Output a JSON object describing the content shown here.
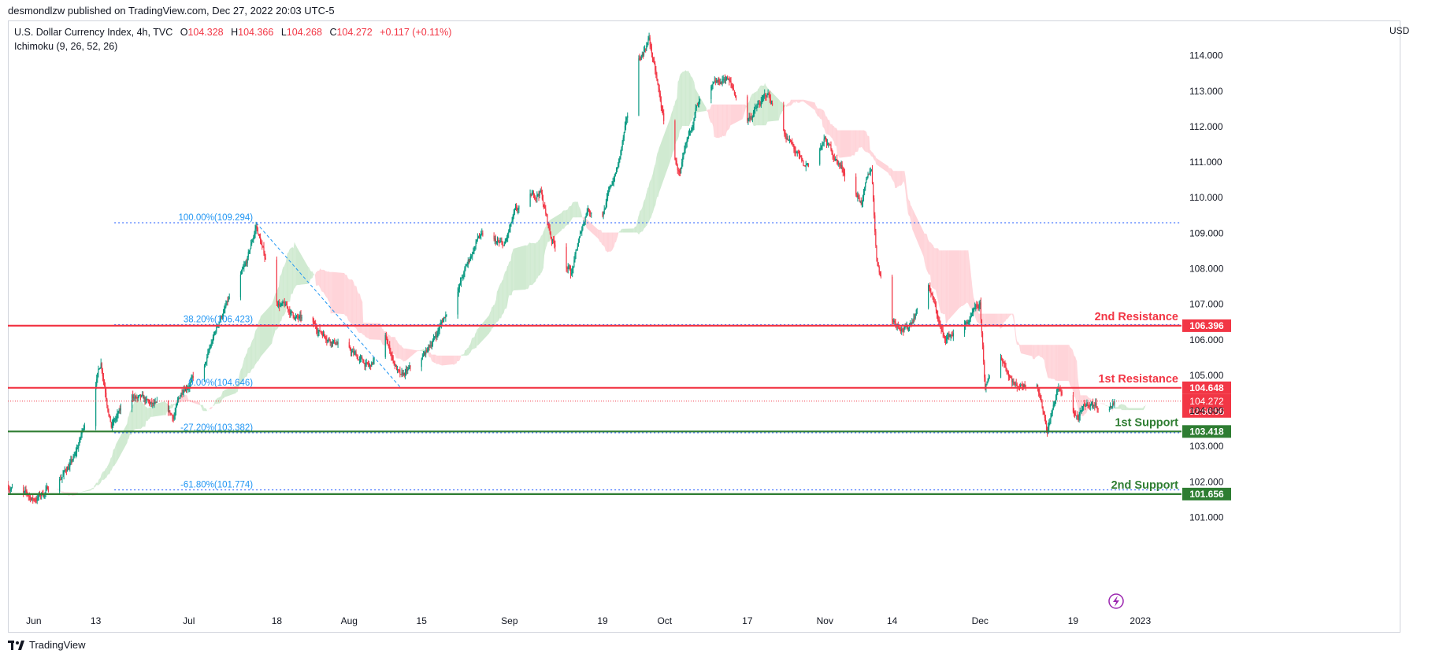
{
  "header": {
    "published": "desmondlzw published on TradingView.com, Dec 27, 2022 20:03 UTC-5",
    "currency": "USD",
    "brand": "TradingView"
  },
  "legend": {
    "symbol": "U.S. Dollar Currency Index, 4h, TVC",
    "o_label": "O",
    "o_value": "104.328",
    "h_label": "H",
    "h_value": "104.366",
    "l_label": "L",
    "l_value": "104.268",
    "c_label": "C",
    "c_value": "104.272",
    "change": "+0.117 (+0.11%)",
    "indicator": "Ichimoku (9, 26, 52, 26)"
  },
  "colors": {
    "up": "#089981",
    "down": "#f23645",
    "resistance": "#f23645",
    "support": "#2e7d32",
    "fib": "#2962ff",
    "kumo_green": "#c8e6c9",
    "kumo_red": "#ffcdd2"
  },
  "chart_data": {
    "type": "candlestick",
    "timeframe": "4h",
    "y_axis": {
      "min": 100.9,
      "max": 114.9,
      "ticks": [
        "114.000",
        "113.000",
        "112.000",
        "111.000",
        "110.000",
        "109.000",
        "108.000",
        "107.000",
        "106.000",
        "105.000",
        "104.000",
        "103.000",
        "102.000",
        "101.000"
      ]
    },
    "x_axis": {
      "domain": [
        "2022-05-27",
        "2023-01-12"
      ],
      "ticks": [
        {
          "date": "2022-06-01",
          "label": "Jun"
        },
        {
          "date": "2022-06-13",
          "label": "13"
        },
        {
          "date": "2022-07-01",
          "label": "Jul"
        },
        {
          "date": "2022-07-18",
          "label": "18"
        },
        {
          "date": "2022-08-01",
          "label": "Aug"
        },
        {
          "date": "2022-08-15",
          "label": "15"
        },
        {
          "date": "2022-09-01",
          "label": "Sep"
        },
        {
          "date": "2022-09-19",
          "label": "19"
        },
        {
          "date": "2022-10-01",
          "label": "Oct"
        },
        {
          "date": "2022-10-17",
          "label": "17"
        },
        {
          "date": "2022-11-01",
          "label": "Nov"
        },
        {
          "date": "2022-11-14",
          "label": "14"
        },
        {
          "date": "2022-12-01",
          "label": "Dec"
        },
        {
          "date": "2022-12-19",
          "label": "19"
        },
        {
          "date": "2023-01-01",
          "label": "2023"
        }
      ]
    },
    "price_path": [
      [
        "2022-05-27",
        101.9
      ],
      [
        "2022-06-01",
        101.5
      ],
      [
        "2022-06-03",
        101.7
      ],
      [
        "2022-06-06",
        102.1
      ],
      [
        "2022-06-09",
        102.7
      ],
      [
        "2022-06-10",
        103.2
      ],
      [
        "2022-06-14",
        105.4
      ],
      [
        "2022-06-16",
        103.6
      ],
      [
        "2022-06-20",
        104.4
      ],
      [
        "2022-06-24",
        104.1
      ],
      [
        "2022-06-28",
        103.8
      ],
      [
        "2022-06-30",
        104.7
      ],
      [
        "2022-07-04",
        105.2
      ],
      [
        "2022-07-07",
        106.6
      ],
      [
        "2022-07-12",
        108.0
      ],
      [
        "2022-07-14",
        109.2
      ],
      [
        "2022-07-18",
        107.1
      ],
      [
        "2022-07-22",
        106.6
      ],
      [
        "2022-07-27",
        106.2
      ],
      [
        "2022-08-01",
        105.7
      ],
      [
        "2022-08-05",
        105.2
      ],
      [
        "2022-08-08",
        106.0
      ],
      [
        "2022-08-11",
        104.9
      ],
      [
        "2022-08-15",
        105.4
      ],
      [
        "2022-08-18",
        106.2
      ],
      [
        "2022-08-23",
        107.8
      ],
      [
        "2022-08-26",
        108.9
      ],
      [
        "2022-08-31",
        108.6
      ],
      [
        "2022-09-02",
        109.5
      ],
      [
        "2022-09-07",
        110.2
      ],
      [
        "2022-09-09",
        108.9
      ],
      [
        "2022-09-13",
        107.9
      ],
      [
        "2022-09-16",
        109.7
      ],
      [
        "2022-09-19",
        109.6
      ],
      [
        "2022-09-22",
        110.9
      ],
      [
        "2022-09-26",
        113.8
      ],
      [
        "2022-09-28",
        114.5
      ],
      [
        "2022-10-01",
        112.0
      ],
      [
        "2022-10-04",
        110.6
      ],
      [
        "2022-10-07",
        112.5
      ],
      [
        "2022-10-13",
        113.4
      ],
      [
        "2022-10-17",
        112.2
      ],
      [
        "2022-10-21",
        112.9
      ],
      [
        "2022-10-24",
        111.9
      ],
      [
        "2022-10-28",
        110.8
      ],
      [
        "2022-11-01",
        111.6
      ],
      [
        "2022-11-04",
        110.9
      ],
      [
        "2022-11-08",
        109.9
      ],
      [
        "2022-11-10",
        110.8
      ],
      [
        "2022-11-11",
        108.3
      ],
      [
        "2022-11-14",
        106.6
      ],
      [
        "2022-11-17",
        106.3
      ],
      [
        "2022-11-21",
        107.6
      ],
      [
        "2022-11-24",
        106.0
      ],
      [
        "2022-11-28",
        106.4
      ],
      [
        "2022-12-01",
        106.9
      ],
      [
        "2022-12-02",
        104.6
      ],
      [
        "2022-12-05",
        105.5
      ],
      [
        "2022-12-08",
        104.7
      ],
      [
        "2022-12-12",
        104.9
      ],
      [
        "2022-12-14",
        103.5
      ],
      [
        "2022-12-16",
        104.6
      ],
      [
        "2022-12-20",
        103.8
      ],
      [
        "2022-12-22",
        104.2
      ],
      [
        "2022-12-26",
        104.1
      ],
      [
        "2022-12-27",
        104.272
      ]
    ],
    "last_price": {
      "value": 104.272,
      "label": "104.272",
      "countdown": "02:56:56"
    },
    "levels": [
      {
        "name": "2nd Resistance",
        "value": 106.396,
        "label": "106.396",
        "kind": "resistance"
      },
      {
        "name": "1st Resistance",
        "value": 104.648,
        "label": "104.648",
        "kind": "resistance"
      },
      {
        "name": "1st Support",
        "value": 103.418,
        "label": "103.418",
        "kind": "support"
      },
      {
        "name": "2nd Support",
        "value": 101.656,
        "label": "101.656",
        "kind": "support"
      }
    ],
    "fibonacci": {
      "start_date": "2022-07-14",
      "end_date": "2022-08-11",
      "levels": [
        {
          "text": "100.00%(109.294)",
          "value": 109.294
        },
        {
          "text": "38.20%(106.423)",
          "value": 106.423
        },
        {
          "text": "0.00%(104.646)",
          "value": 104.646
        },
        {
          "text": "-27.20%(103.382)",
          "value": 103.382
        },
        {
          "text": "-61.80%(101.774)",
          "value": 101.774
        }
      ]
    },
    "ichimoku": {
      "params": "9, 26, 52, 26"
    },
    "grid": false
  }
}
